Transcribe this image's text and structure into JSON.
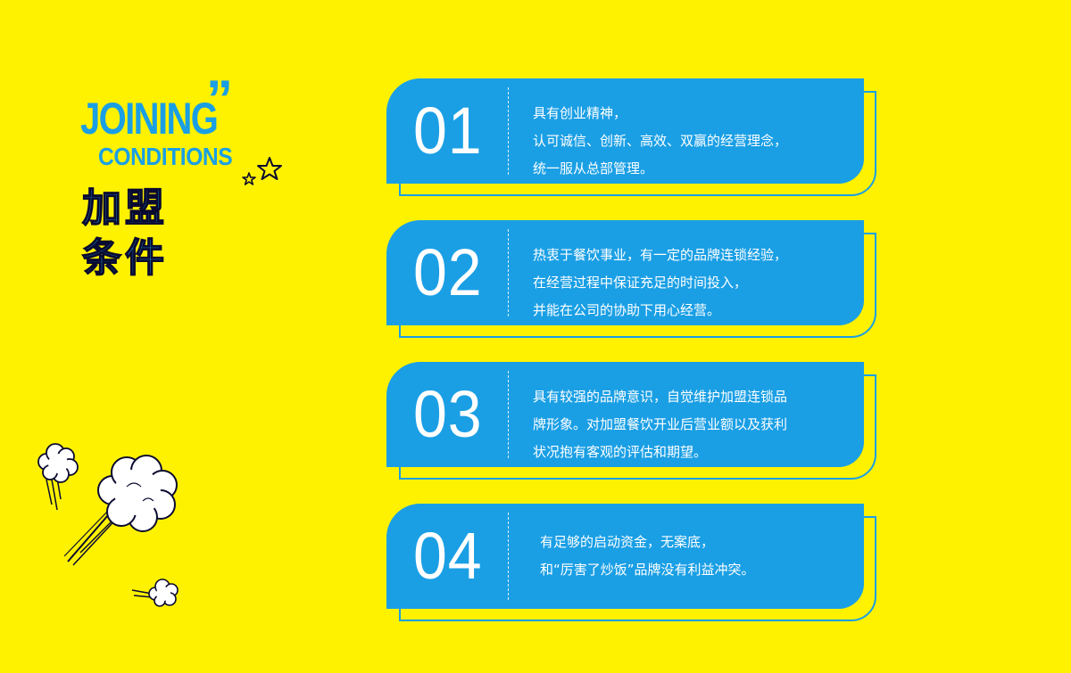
{
  "heading": {
    "en_line1": "JOINING",
    "quote_mark": "”",
    "en_line2": "CONDITIONS",
    "cn_line1": "加盟",
    "cn_line2": "条件"
  },
  "conditions": [
    {
      "number": "01",
      "lines": [
        "具有创业精神，",
        "认可诚信、创新、高效、双赢的经营理念，",
        "统一服从总部管理。"
      ]
    },
    {
      "number": "02",
      "lines": [
        "热衷于餐饮事业，有一定的品牌连锁经验，",
        "在经营过程中保证充足的时间投入，",
        "并能在公司的协助下用心经营。"
      ]
    },
    {
      "number": "03",
      "lines": [
        "具有较强的品牌意识，自觉维护加盟连锁品",
        "牌形象。对加盟餐饮开业后营业额以及获利",
        "状况抱有客观的评估和期望。"
      ]
    },
    {
      "number": "04",
      "lines": [
        "有足够的启动资金，无案底，",
        "和“厉害了炒饭”品牌没有利益冲突。"
      ]
    }
  ],
  "colors": {
    "background": "#FFF200",
    "accent_blue": "#1A9FE5",
    "text_white": "#FFFFFF",
    "outline_dark": "#0A0A30"
  },
  "icons": [
    "star-icon",
    "cloud-puff-icon"
  ]
}
